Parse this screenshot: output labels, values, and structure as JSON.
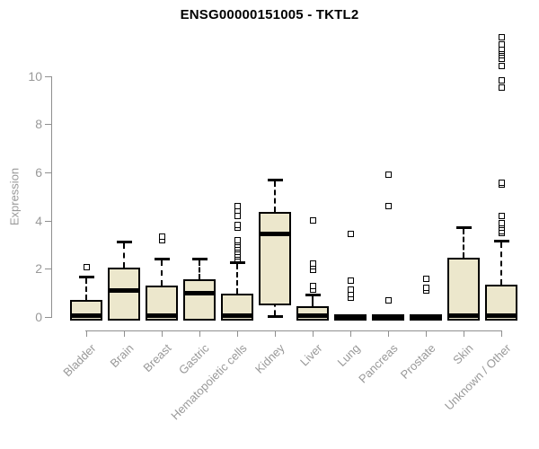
{
  "chart_data": {
    "type": "boxplot",
    "title": "ENSG00000151005 - TKTL2",
    "ylabel": "Expression",
    "xlabel": "",
    "ylim": [
      0,
      11.8
    ],
    "yticks": [
      0,
      2,
      4,
      6,
      8,
      10
    ],
    "grid": false,
    "legend": "none",
    "categories": [
      "Bladder",
      "Brain",
      "Breast",
      "Gastric",
      "Hematopoietic cells",
      "Kidney",
      "Liver",
      "Lung",
      "Pancreas",
      "Prostate",
      "Skin",
      "Unknown / Other"
    ],
    "series": [
      {
        "name": "Bladder",
        "whisker_low": 0,
        "q1": 0,
        "median": 0.07,
        "q3": 0.7,
        "whisker_high": 1.7,
        "outliers": [
          2.05
        ]
      },
      {
        "name": "Brain",
        "whisker_low": 0,
        "q1": 0,
        "median": 1.1,
        "q3": 2.05,
        "whisker_high": 3.15,
        "outliers": []
      },
      {
        "name": "Breast",
        "whisker_low": 0,
        "q1": 0,
        "median": 0.07,
        "q3": 1.3,
        "whisker_high": 2.45,
        "outliers": [
          3.2,
          3.35
        ]
      },
      {
        "name": "Gastric",
        "whisker_low": 0,
        "q1": 0,
        "median": 1.0,
        "q3": 1.55,
        "whisker_high": 2.45,
        "outliers": []
      },
      {
        "name": "Hematopoietic cells",
        "whisker_low": 0,
        "q1": 0,
        "median": 0.07,
        "q3": 0.95,
        "whisker_high": 2.3,
        "outliers": [
          2.4,
          2.5,
          2.6,
          2.7,
          2.8,
          2.9,
          3.0,
          3.1,
          3.2,
          3.7,
          3.8,
          4.2,
          4.4,
          4.6
        ]
      },
      {
        "name": "Kidney",
        "whisker_low": 0,
        "q1": 0.65,
        "median": 3.45,
        "q3": 4.35,
        "whisker_high": 5.75,
        "outliers": []
      },
      {
        "name": "Liver",
        "whisker_low": 0,
        "q1": 0,
        "median": 0.07,
        "q3": 0.45,
        "whisker_high": 0.95,
        "outliers": [
          1.15,
          1.3,
          1.95,
          2.1,
          2.2,
          4.0
        ]
      },
      {
        "name": "Lung",
        "whisker_low": 0,
        "q1": 0,
        "median": 0.04,
        "q3": 0.08,
        "whisker_high": 0.08,
        "outliers": [
          0.8,
          0.95,
          1.15,
          1.5,
          3.45
        ]
      },
      {
        "name": "Pancreas",
        "whisker_low": 0,
        "q1": 0,
        "median": 0.04,
        "q3": 0.08,
        "whisker_high": 0.08,
        "outliers": [
          0.7,
          4.6,
          5.9
        ]
      },
      {
        "name": "Prostate",
        "whisker_low": 0,
        "q1": 0,
        "median": 0.04,
        "q3": 0.08,
        "whisker_high": 0.08,
        "outliers": [
          1.1,
          1.2,
          1.6
        ]
      },
      {
        "name": "Skin",
        "whisker_low": 0,
        "q1": 0,
        "median": 0.07,
        "q3": 2.45,
        "whisker_high": 3.75,
        "outliers": []
      },
      {
        "name": "Unknown / Other",
        "whisker_low": 0,
        "q1": 0,
        "median": 0.07,
        "q3": 1.35,
        "whisker_high": 3.2,
        "outliers": [
          3.5,
          3.55,
          3.7,
          3.8,
          3.9,
          4.2,
          5.5,
          5.55,
          9.5,
          9.8,
          10.4,
          10.7,
          10.85,
          10.95,
          11.05,
          11.1,
          11.3,
          11.6
        ]
      }
    ],
    "colors": {
      "box_fill": "#ece7cc",
      "box_border": "#000000",
      "median": "#000000",
      "whisker": "#000000",
      "outlier": "#000000",
      "axis": "#8f8f8f",
      "tick_text": "#999999",
      "title_text": "#000000",
      "background": "#ffffff"
    }
  }
}
